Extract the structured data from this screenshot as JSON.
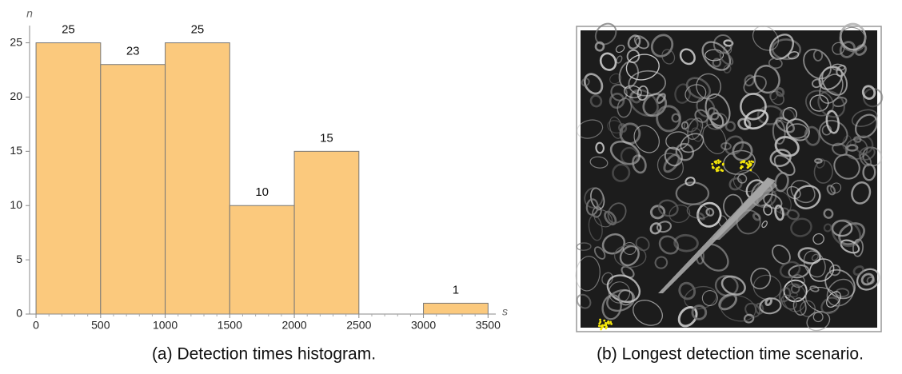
{
  "chart_data": {
    "type": "histogram",
    "x_label": "s",
    "y_label": "n",
    "bins": [
      0,
      500,
      1000,
      1500,
      2000,
      2500,
      3000,
      3500
    ],
    "values": [
      25,
      23,
      25,
      10,
      15,
      0,
      1
    ],
    "value_labels": [
      "25",
      "23",
      "25",
      "10",
      "15",
      null,
      "1"
    ],
    "xlim": [
      -50,
      3560
    ],
    "ylim": [
      0,
      26
    ],
    "xticks": [
      0,
      500,
      1000,
      1500,
      2000,
      2500,
      3000,
      3500
    ],
    "yticks": [
      0,
      5,
      10,
      15,
      20,
      25
    ],
    "color": "#fbc97d",
    "edge_color": "#777777",
    "caption": "(a) Detection times histogram."
  },
  "image": {
    "caption": "(b) Longest detection time scenario."
  }
}
